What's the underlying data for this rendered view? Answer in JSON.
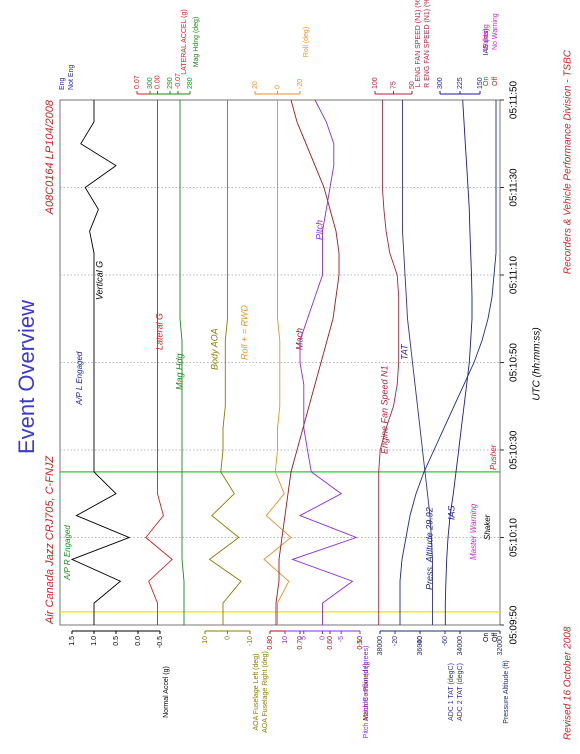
{
  "chart_data": {
    "type": "line",
    "title": "Event Overview",
    "subtitle_left": "Air Canada Jazz CRJ705, C-FNJZ",
    "subtitle_right": "A08C0164  LP104/2008",
    "xlabel": "UTC (hh:mm:ss)",
    "footer_left": "Revised 16 October 2008",
    "footer_right": "Recorders & Vehicle Performance Division - TSBC",
    "x": [
      "05:09:50",
      "05:09:55",
      "05:10:00",
      "05:10:05",
      "05:10:10",
      "05:10:15",
      "05:10:20",
      "05:10:25",
      "05:10:30",
      "05:10:35",
      "05:10:40",
      "05:10:45",
      "05:10:50",
      "05:10:55",
      "05:11:00",
      "05:11:05",
      "05:11:10",
      "05:11:15",
      "05:11:20",
      "05:11:25",
      "05:11:30",
      "05:11:35",
      "05:11:40",
      "05:11:45",
      "05:11:50"
    ],
    "xlim": [
      "05:09:50",
      "05:11:50"
    ],
    "xticks": [
      "05:09:50",
      "05:10:10",
      "05:10:30",
      "05:10:50",
      "05:11:10",
      "05:11:30",
      "05:11:50"
    ],
    "grid": true,
    "event_lines": [
      {
        "x": "05:09:53",
        "color": "#e8e800"
      },
      {
        "x": "05:10:25",
        "color": "#2ec82e"
      }
    ],
    "series": [
      {
        "name": "Vertical G",
        "color": "#000000",
        "side": "left",
        "axis_labels": [
          "Normal Accel (g)"
        ],
        "ylim": [
          -0.5,
          1.5
        ],
        "yticks": [
          1.5,
          {
            "value": 1,
            "label": "1.0"
          },
          0.5,
          {
            "value": 0,
            "label": "0.0"
          },
          -0.5
        ],
        "values": [
          1.0,
          1.0,
          0.4,
          1.5,
          0.2,
          1.4,
          0.5,
          1.0,
          1.0,
          1.0,
          1.0,
          1.0,
          1.0,
          1.0,
          1.0,
          1.0,
          1.0,
          1.0,
          1.1,
          0.9,
          1.2,
          0.5,
          1.3,
          1.0,
          1.0
        ]
      },
      {
        "name": "Lateral G",
        "color": "#d02020",
        "side": "right",
        "axis_labels": [
          "LATERAL ACCEL (g)"
        ],
        "ylim": [
          -0.07,
          0.07
        ],
        "yticks": [
          0.07,
          {
            "value": 0,
            "label": "0.00"
          },
          -0.07
        ],
        "values": [
          0,
          0,
          0.03,
          -0.05,
          0.04,
          -0.02,
          0,
          0,
          0,
          0,
          0,
          0,
          0,
          0,
          0,
          0,
          0,
          0,
          0,
          0,
          0,
          0,
          0,
          0,
          0
        ]
      },
      {
        "name": "Mag Hdg",
        "color": "#1a8a1a",
        "side": "right",
        "axis_labels": [
          "Mag Hdng (deg)"
        ],
        "ylim": [
          280,
          300
        ],
        "yticks": [
          300,
          290,
          280
        ],
        "values": [
          283,
          283,
          283,
          284,
          284,
          284,
          284,
          284,
          284,
          284,
          284,
          284,
          284,
          284,
          285,
          285,
          285,
          285,
          285,
          285,
          285,
          285,
          285,
          285,
          285
        ]
      },
      {
        "name": "Body AOA",
        "color": "#8a7a00",
        "side": "left",
        "axis_labels": [
          "AOA Fuselage Left (deg)",
          "AOA Fuselage Right (deg)"
        ],
        "ylim": [
          -10,
          10
        ],
        "yticks": [
          10,
          0,
          -10
        ],
        "values": [
          2,
          2,
          -6,
          8,
          -5,
          7,
          -3,
          3,
          2,
          2,
          1,
          1,
          1,
          1,
          0,
          0,
          0,
          0,
          0,
          0,
          0,
          0,
          0,
          0,
          0
        ]
      },
      {
        "name": "Roll + = RWD",
        "color": "#e8902a",
        "side": "right",
        "axis_labels": [
          "Roll (deg)"
        ],
        "ylim": [
          -20,
          20
        ],
        "yticks": [
          20,
          0,
          -20
        ],
        "values": [
          0,
          0,
          -10,
          12,
          -12,
          10,
          -6,
          2,
          0,
          0,
          -2,
          -2,
          -2,
          -2,
          0,
          0,
          0,
          0,
          0,
          0,
          0,
          0,
          0,
          0,
          0
        ]
      },
      {
        "name": "Mach",
        "color": "#a01818",
        "side": "left",
        "axis_labels": [
          "Mach Combined ()"
        ],
        "ylim": [
          0.5,
          0.8
        ],
        "yticks": [
          {
            "value": 0.8,
            "label": "0.80"
          },
          {
            "value": 0.7,
            "label": "0.70"
          },
          {
            "value": 0.6,
            "label": "0.60"
          },
          {
            "value": 0.5,
            "label": "0.50"
          }
        ],
        "values": [
          0.78,
          0.78,
          0.77,
          0.77,
          0.76,
          0.75,
          0.74,
          0.73,
          0.71,
          0.69,
          0.67,
          0.65,
          0.63,
          0.61,
          0.59,
          0.58,
          0.57,
          0.57,
          0.58,
          0.6,
          0.62,
          0.65,
          0.68,
          0.71,
          0.73
        ]
      },
      {
        "name": "Pitch",
        "color": "#8a2be2",
        "side": "left",
        "axis_labels": [
          "Pitch Attitude - Pilot (degrees)"
        ],
        "ylim": [
          -10,
          10
        ],
        "yticks": [
          10,
          5,
          0,
          -5,
          -10
        ],
        "values": [
          0,
          0,
          -8,
          8,
          -9,
          6,
          -5,
          3,
          4,
          5,
          5,
          5,
          6,
          6,
          4,
          2,
          0,
          0,
          0,
          -1,
          -2,
          -3,
          -3,
          -1,
          2
        ]
      },
      {
        "name": "Engine Fan Speed N1",
        "color": "#b0203a",
        "side": "right",
        "axis_labels": [
          "L ENG FAN SPEED (N1) (%)",
          "R ENG FAN SPEED (N1) (%)"
        ],
        "ylim": [
          50,
          100
        ],
        "yticks": [
          100,
          75,
          50
        ],
        "values": [
          95,
          95,
          95,
          95,
          95,
          95,
          95,
          95,
          93,
          85,
          75,
          70,
          68,
          68,
          68,
          68,
          70,
          80,
          85,
          88,
          90,
          90,
          90,
          90,
          90
        ]
      },
      {
        "name": "TAT",
        "color": "#3030a0",
        "side": "left",
        "axis_labels": [
          "ADC 1 TAT (degC)",
          "ADC 2 TAT (degC)"
        ],
        "ylim": [
          -60,
          -20
        ],
        "yticks": [
          -20,
          -40,
          -60
        ],
        "values": [
          -50,
          -50,
          -50,
          -50,
          -49,
          -48,
          -46,
          -44,
          -42,
          -40,
          -38,
          -36,
          -34,
          -32,
          -30,
          -29,
          -28,
          -27,
          -26,
          -26,
          -26,
          -26,
          -26,
          -26,
          -26
        ]
      },
      {
        "name": "IAS",
        "color": "#1a1aa0",
        "side": "right",
        "axis_labels": [
          "IAS (kts)"
        ],
        "ylim": [
          150,
          300
        ],
        "yticks": [
          300,
          225,
          150
        ],
        "values": [
          280,
          280,
          278,
          275,
          270,
          262,
          250,
          240,
          230,
          220,
          210,
          200,
          190,
          185,
          180,
          180,
          182,
          185,
          188,
          190,
          195,
          200,
          205,
          210,
          215
        ]
      },
      {
        "name": "Press. Altitude 29.92",
        "color": "#1c2a80",
        "side": "left",
        "axis_labels": [
          "Pressure Altitude (ft)"
        ],
        "ylim": [
          32000,
          38000
        ],
        "yticks": [
          38000,
          36000,
          34000,
          32000
        ],
        "values": [
          37000,
          37000,
          37000,
          36900,
          36700,
          36500,
          36200,
          35800,
          35300,
          34800,
          34300,
          33800,
          33300,
          32900,
          32600,
          32400,
          32300,
          32200,
          32200,
          32200,
          32200,
          32200,
          32200,
          32200,
          32200
        ]
      }
    ],
    "annotations": [
      {
        "text": "A/P R Engaged",
        "color": "#1a8a1a"
      },
      {
        "text": "A/P L Engaged",
        "color": "#1a1aa0"
      },
      {
        "text": "Master Warning",
        "color": "#d020d0"
      },
      {
        "text": "Shaker",
        "color": "#000000"
      },
      {
        "text": "Pusher",
        "color": "#d02020"
      }
    ],
    "discrete_labels": [
      {
        "text": "Eng",
        "color": "#1a1aa0"
      },
      {
        "text": "Not Eng",
        "color": "#1a1aa0"
      },
      {
        "text": "Warning",
        "color": "#d020d0"
      },
      {
        "text": "No Warning",
        "color": "#d020d0"
      },
      {
        "text": "On",
        "color": "#d02020"
      },
      {
        "text": "Off",
        "color": "#d02020"
      },
      {
        "text": "On",
        "color": "#000000"
      },
      {
        "text": "Off",
        "color": "#000000"
      }
    ]
  }
}
